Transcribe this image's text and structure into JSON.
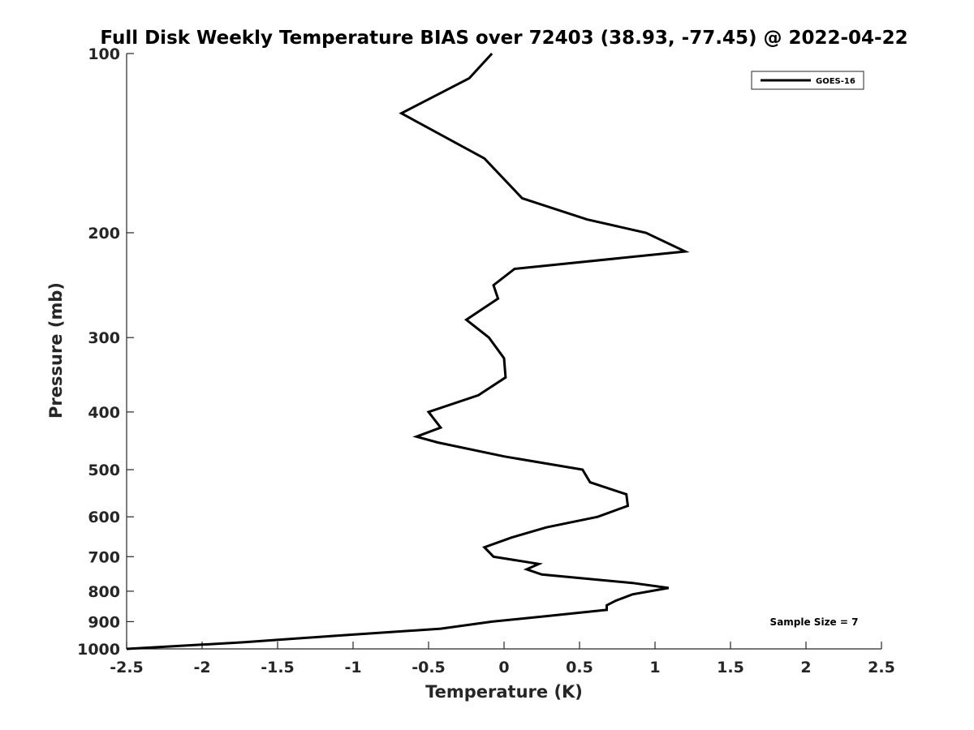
{
  "chart_data": {
    "type": "line",
    "title": "Full Disk Weekly Temperature BIAS over 72403 (38.93, -77.45) @ 2022-04-22",
    "xlabel": "Temperature (K)",
    "ylabel": "Pressure (mb)",
    "xlim": [
      -2.5,
      2.5
    ],
    "ylim": [
      100,
      1000
    ],
    "y_scale": "log",
    "y_reversed": true,
    "grid": false,
    "x_ticks": [
      -2.5,
      -2,
      -1.5,
      -1,
      -0.5,
      0,
      0.5,
      1,
      1.5,
      2,
      2.5
    ],
    "x_tick_labels": [
      "-2.5",
      "-2",
      "-1.5",
      "-1",
      "-0.5",
      "0",
      "0.5",
      "1",
      "1.5",
      "2",
      "2.5"
    ],
    "y_ticks": [
      100,
      200,
      300,
      400,
      500,
      600,
      700,
      800,
      900,
      1000
    ],
    "y_tick_labels": [
      "100",
      "200",
      "300",
      "400",
      "500",
      "600",
      "700",
      "800",
      "900",
      "1000"
    ],
    "legend_position": "top-right",
    "series": [
      {
        "name": "GOES-16",
        "color": "#000000",
        "points": [
          {
            "x": -0.08,
            "y": 100
          },
          {
            "x": -0.23,
            "y": 110
          },
          {
            "x": -0.68,
            "y": 126
          },
          {
            "x": -0.13,
            "y": 150
          },
          {
            "x": 0.12,
            "y": 175
          },
          {
            "x": 0.55,
            "y": 190
          },
          {
            "x": 0.94,
            "y": 200
          },
          {
            "x": 1.2,
            "y": 215
          },
          {
            "x": 0.07,
            "y": 230
          },
          {
            "x": -0.07,
            "y": 245
          },
          {
            "x": -0.04,
            "y": 258
          },
          {
            "x": -0.25,
            "y": 280
          },
          {
            "x": -0.1,
            "y": 300
          },
          {
            "x": 0,
            "y": 325
          },
          {
            "x": 0.01,
            "y": 350
          },
          {
            "x": -0.17,
            "y": 375
          },
          {
            "x": -0.5,
            "y": 400
          },
          {
            "x": -0.42,
            "y": 425
          },
          {
            "x": -0.58,
            "y": 440
          },
          {
            "x": -0.44,
            "y": 450
          },
          {
            "x": 0,
            "y": 475
          },
          {
            "x": 0.52,
            "y": 500
          },
          {
            "x": 0.57,
            "y": 525
          },
          {
            "x": 0.81,
            "y": 550
          },
          {
            "x": 0.82,
            "y": 575
          },
          {
            "x": 0.62,
            "y": 600
          },
          {
            "x": 0.28,
            "y": 625
          },
          {
            "x": 0.05,
            "y": 650
          },
          {
            "x": -0.13,
            "y": 675
          },
          {
            "x": -0.07,
            "y": 700
          },
          {
            "x": 0.23,
            "y": 720
          },
          {
            "x": 0.15,
            "y": 735
          },
          {
            "x": 0.25,
            "y": 750
          },
          {
            "x": 0.85,
            "y": 775
          },
          {
            "x": 1.09,
            "y": 790
          },
          {
            "x": 0.85,
            "y": 810
          },
          {
            "x": 0.74,
            "y": 830
          },
          {
            "x": 0.68,
            "y": 845
          },
          {
            "x": 0.68,
            "y": 860
          },
          {
            "x": 0.3,
            "y": 880
          },
          {
            "x": -0.08,
            "y": 900
          },
          {
            "x": -0.42,
            "y": 925
          },
          {
            "x": -1.1,
            "y": 950
          },
          {
            "x": -1.73,
            "y": 975
          },
          {
            "x": -2.5,
            "y": 1000
          }
        ]
      }
    ],
    "annotations": [
      {
        "text": "Sample Size = 7",
        "position": "bottom-right"
      }
    ]
  }
}
